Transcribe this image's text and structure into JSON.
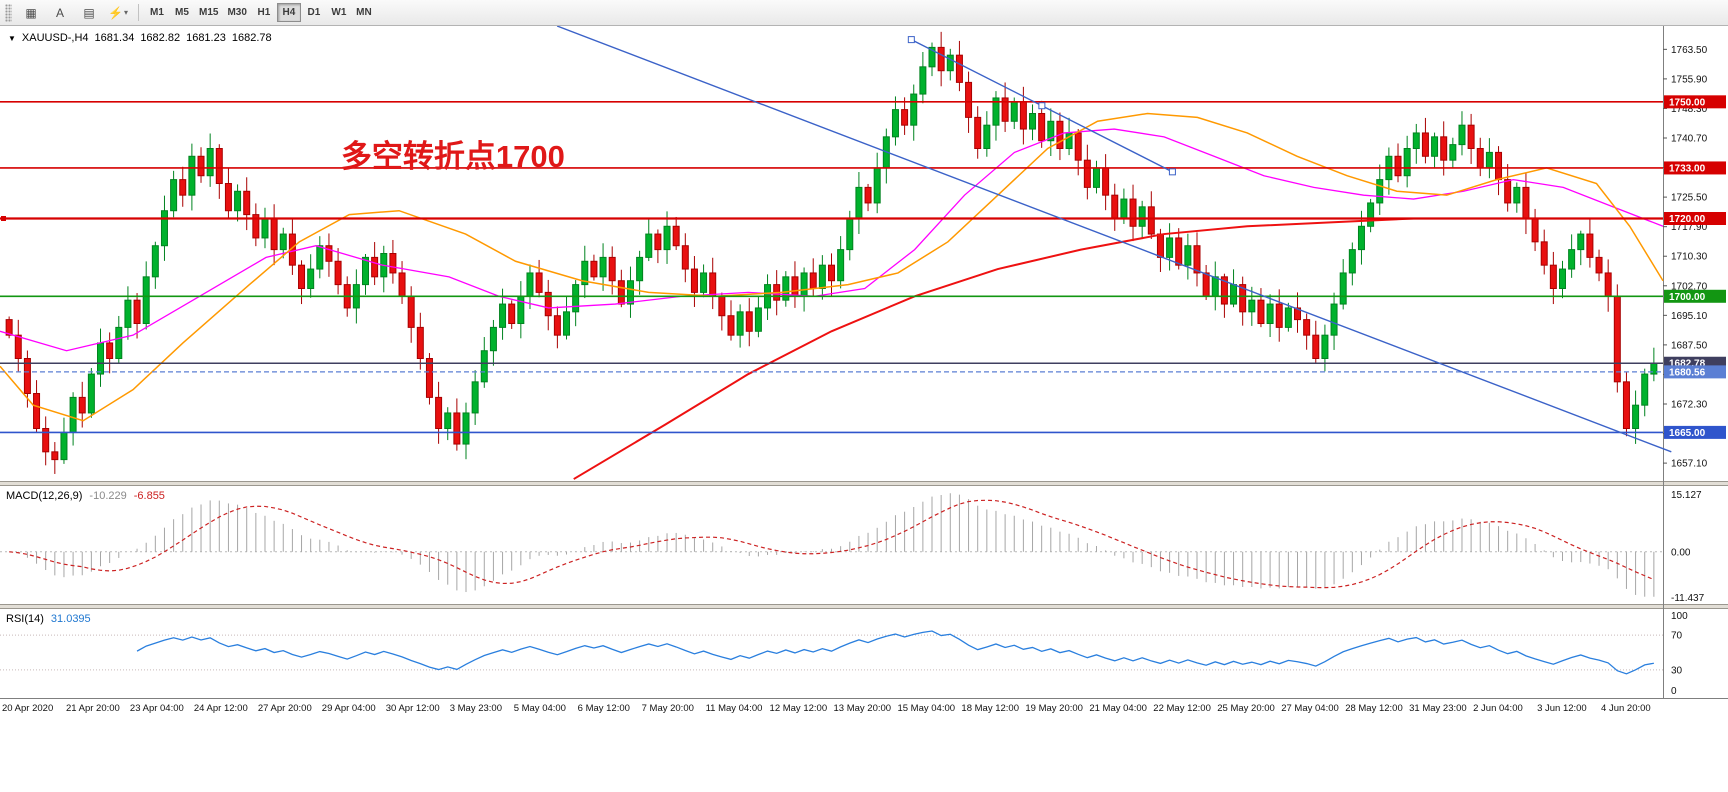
{
  "toolbar": {
    "icons": [
      {
        "name": "chart-window-icon",
        "glyph": "▦"
      },
      {
        "name": "text-annotation-icon",
        "glyph": "A"
      },
      {
        "name": "objects-list-icon",
        "glyph": "▤"
      },
      {
        "name": "template-icon",
        "glyph": "⚡",
        "has_caret": true
      }
    ],
    "timeframes": [
      "M1",
      "M5",
      "M15",
      "M30",
      "H1",
      "H4",
      "D1",
      "W1",
      "MN"
    ],
    "active_timeframe": "H4"
  },
  "chart": {
    "symbol_info": {
      "symbol": "XAUUSD-,H4",
      "open": "1681.34",
      "high": "1682.82",
      "low": "1681.23",
      "close": "1682.78"
    }
  },
  "chart_data": {
    "type": "candlestick",
    "symbol": "XAUUSD",
    "timeframe": "H4",
    "annotation": {
      "text": "多空转折点1700",
      "color": "#e01818",
      "x_frac": 0.205,
      "price": 1742.5
    },
    "price_axis": {
      "max": 1769.5,
      "min": 1652.5,
      "ticks": [
        1763.5,
        1755.9,
        1748.3,
        1740.7,
        1733.1,
        1725.5,
        1717.9,
        1710.3,
        1702.7,
        1695.1,
        1687.5,
        1679.9,
        1672.3,
        1664.7,
        1657.1
      ]
    },
    "candles": {
      "first_open": 1694,
      "up_fill": "#00b22d",
      "up_border": "#00831f",
      "down_fill": "#e81010",
      "down_border": "#a80000",
      "closes": [
        1690,
        1684,
        1675,
        1666,
        1660,
        1658,
        1665,
        1674,
        1670,
        1680,
        1688,
        1684,
        1692,
        1699,
        1693,
        1705,
        1713,
        1722,
        1730,
        1726,
        1736,
        1731,
        1738,
        1729,
        1722,
        1727,
        1721,
        1715,
        1720,
        1712,
        1716,
        1708,
        1702,
        1707,
        1713,
        1709,
        1703,
        1697,
        1703,
        1710,
        1705,
        1711,
        1706,
        1700,
        1692,
        1684,
        1674,
        1666,
        1670,
        1662,
        1670,
        1678,
        1686,
        1692,
        1698,
        1693,
        1700,
        1706,
        1701,
        1695,
        1690,
        1696,
        1703,
        1709,
        1705,
        1710,
        1704,
        1698,
        1704,
        1710,
        1716,
        1712,
        1718,
        1713,
        1707,
        1701,
        1706,
        1700,
        1695,
        1690,
        1696,
        1691,
        1697,
        1703,
        1699,
        1705,
        1700,
        1706,
        1702,
        1708,
        1704,
        1712,
        1720,
        1728,
        1724,
        1733,
        1741,
        1748,
        1744,
        1752,
        1759,
        1764,
        1758,
        1762,
        1755,
        1746,
        1738,
        1744,
        1751,
        1745,
        1750,
        1743,
        1747,
        1740,
        1745,
        1738,
        1742,
        1735,
        1728,
        1733,
        1726,
        1720,
        1725,
        1718,
        1723,
        1716,
        1710,
        1715,
        1708,
        1713,
        1706,
        1700,
        1705,
        1698,
        1703,
        1696,
        1699,
        1693,
        1698,
        1692,
        1697,
        1694,
        1690,
        1684,
        1690,
        1698,
        1706,
        1712,
        1718,
        1724,
        1730,
        1736,
        1731,
        1738,
        1742,
        1736,
        1741,
        1735,
        1739,
        1744,
        1738,
        1733,
        1737,
        1730,
        1724,
        1728,
        1720,
        1714,
        1708,
        1702,
        1707,
        1712,
        1716,
        1710,
        1706,
        1700,
        1678,
        1666,
        1672,
        1680,
        1682.78
      ]
    },
    "moving_averages": [
      {
        "name": "ma-fast-magenta",
        "color": "#ff00ff",
        "width": 1.3,
        "points": [
          [
            0,
            1691
          ],
          [
            0.04,
            1686
          ],
          [
            0.08,
            1690
          ],
          [
            0.12,
            1700
          ],
          [
            0.16,
            1710
          ],
          [
            0.19,
            1713
          ],
          [
            0.23,
            1708
          ],
          [
            0.27,
            1705
          ],
          [
            0.3,
            1700
          ],
          [
            0.33,
            1697
          ],
          [
            0.37,
            1698
          ],
          [
            0.41,
            1700
          ],
          [
            0.45,
            1701
          ],
          [
            0.49,
            1700
          ],
          [
            0.52,
            1702
          ],
          [
            0.55,
            1712
          ],
          [
            0.58,
            1726
          ],
          [
            0.61,
            1737
          ],
          [
            0.64,
            1742
          ],
          [
            0.67,
            1743
          ],
          [
            0.7,
            1741
          ],
          [
            0.73,
            1736
          ],
          [
            0.76,
            1731
          ],
          [
            0.79,
            1728
          ],
          [
            0.82,
            1726
          ],
          [
            0.85,
            1725
          ],
          [
            0.88,
            1727
          ],
          [
            0.91,
            1730
          ],
          [
            0.94,
            1728
          ],
          [
            0.97,
            1723
          ],
          [
            1,
            1718
          ]
        ]
      },
      {
        "name": "ma-mid-orange",
        "color": "#ff9900",
        "width": 1.5,
        "points": [
          [
            0,
            1682
          ],
          [
            0.02,
            1672
          ],
          [
            0.05,
            1668
          ],
          [
            0.08,
            1676
          ],
          [
            0.11,
            1688
          ],
          [
            0.15,
            1703
          ],
          [
            0.18,
            1714
          ],
          [
            0.21,
            1721
          ],
          [
            0.24,
            1722
          ],
          [
            0.28,
            1716
          ],
          [
            0.31,
            1709
          ],
          [
            0.35,
            1704
          ],
          [
            0.39,
            1701
          ],
          [
            0.43,
            1700
          ],
          [
            0.47,
            1701
          ],
          [
            0.51,
            1703
          ],
          [
            0.54,
            1706
          ],
          [
            0.57,
            1714
          ],
          [
            0.6,
            1726
          ],
          [
            0.63,
            1738
          ],
          [
            0.66,
            1745
          ],
          [
            0.69,
            1747
          ],
          [
            0.72,
            1746
          ],
          [
            0.75,
            1742
          ],
          [
            0.78,
            1736
          ],
          [
            0.81,
            1731
          ],
          [
            0.84,
            1727
          ],
          [
            0.87,
            1726
          ],
          [
            0.9,
            1730
          ],
          [
            0.93,
            1733
          ],
          [
            0.96,
            1729
          ],
          [
            0.98,
            1718
          ],
          [
            1,
            1704
          ]
        ]
      },
      {
        "name": "ma-slow-red",
        "color": "#ee1111",
        "width": 2,
        "points": [
          [
            0.345,
            1653
          ],
          [
            0.4,
            1667
          ],
          [
            0.45,
            1680
          ],
          [
            0.5,
            1691
          ],
          [
            0.55,
            1700
          ],
          [
            0.6,
            1707
          ],
          [
            0.65,
            1712
          ],
          [
            0.7,
            1716
          ],
          [
            0.75,
            1718
          ],
          [
            0.8,
            1719
          ],
          [
            0.85,
            1720
          ],
          [
            0.9,
            1720
          ],
          [
            0.95,
            1720
          ],
          [
            1,
            1720
          ]
        ]
      }
    ],
    "levels": [
      {
        "price": 1750,
        "label": "1750.00",
        "color": "#d60000",
        "width": 1.6
      },
      {
        "price": 1733,
        "label": "1733.00",
        "color": "#d60000",
        "width": 1.6
      },
      {
        "price": 1720,
        "label": "1720.00",
        "color": "#d60000",
        "width": 2.2,
        "handle": true
      },
      {
        "price": 1700,
        "label": "1700.00",
        "color": "#129612",
        "width": 1.6
      },
      {
        "price": 1682.78,
        "label": "1682.78",
        "color": "#3f3f5f",
        "width": 1.4
      },
      {
        "price": 1680.56,
        "label": "1680.56",
        "color": "#5b7fd4",
        "width": 1.2,
        "dash": "5,3"
      },
      {
        "price": 1665,
        "label": "1665.00",
        "color": "#2f55cc",
        "width": 1.6
      }
    ],
    "trendlines": [
      {
        "x1": 0.335,
        "p1": 1769.5,
        "x2": 1.005,
        "p2": 1660,
        "color": "#3b62c8",
        "width": 1.4,
        "handles": false
      },
      {
        "x1": 0.548,
        "p1": 1766,
        "x2": 0.705,
        "p2": 1732,
        "color": "#3b62c8",
        "width": 1.4,
        "handles": true
      }
    ],
    "macd": {
      "label": "MACD(12,26,9)",
      "value_main": "-10.229",
      "value_signal": "-6.855",
      "fast": 12,
      "slow": 26,
      "signal": 9,
      "ticks": [
        "15.127",
        "0.00",
        "-11.437"
      ]
    },
    "rsi": {
      "label": "RSI(14)",
      "value": "31.0395",
      "period": 14,
      "levels": [
        70,
        30
      ],
      "ticks": [
        "100",
        "70",
        "30",
        "0"
      ]
    },
    "time_labels": [
      "20 Apr 2020",
      "21 Apr 20:00",
      "23 Apr 04:00",
      "24 Apr 12:00",
      "27 Apr 20:00",
      "29 Apr 04:00",
      "30 Apr 12:00",
      "3 May 23:00",
      "5 May 04:00",
      "6 May 12:00",
      "7 May 20:00",
      "11 May 04:00",
      "12 May 12:00",
      "13 May 20:00",
      "15 May 04:00",
      "18 May 12:00",
      "19 May 20:00",
      "21 May 04:00",
      "22 May 12:00",
      "25 May 20:00",
      "27 May 04:00",
      "28 May 12:00",
      "31 May 23:00",
      "2 Jun 04:00",
      "3 Jun 12:00",
      "4 Jun 20:00"
    ]
  }
}
